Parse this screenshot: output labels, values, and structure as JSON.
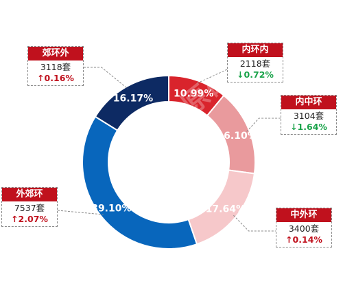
{
  "chart_data": {
    "type": "donut",
    "title": "",
    "slices": [
      {
        "name": "内环内",
        "percent": 10.99,
        "label": "10.99%",
        "count": "2118套",
        "change": "0.72%",
        "direction": "down",
        "color": "#d9242c"
      },
      {
        "name": "内中环",
        "percent": 16.1,
        "label": "16.10%",
        "count": "3104套",
        "change": "1.64%",
        "direction": "down",
        "color": "#e99a9d"
      },
      {
        "name": "中外环",
        "percent": 17.64,
        "label": "17.64%",
        "count": "3400套",
        "change": "0.14%",
        "direction": "up",
        "color": "#f6c8ca"
      },
      {
        "name": "外郊环",
        "percent": 39.1,
        "label": "39.10%",
        "count": "7537套",
        "change": "2.07%",
        "direction": "up",
        "color": "#0866bc"
      },
      {
        "name": "郊环外",
        "percent": 16.17,
        "label": "16.17%",
        "count": "3118套",
        "change": "0.16%",
        "direction": "up",
        "color": "#0d2a63"
      }
    ]
  },
  "colors": {
    "up": "#c0111d",
    "down": "#1aa34a",
    "callout_header": "#c0111d"
  },
  "arrows": {
    "up": "↑",
    "down": "↓"
  },
  "watermark": "上海中原研究院"
}
